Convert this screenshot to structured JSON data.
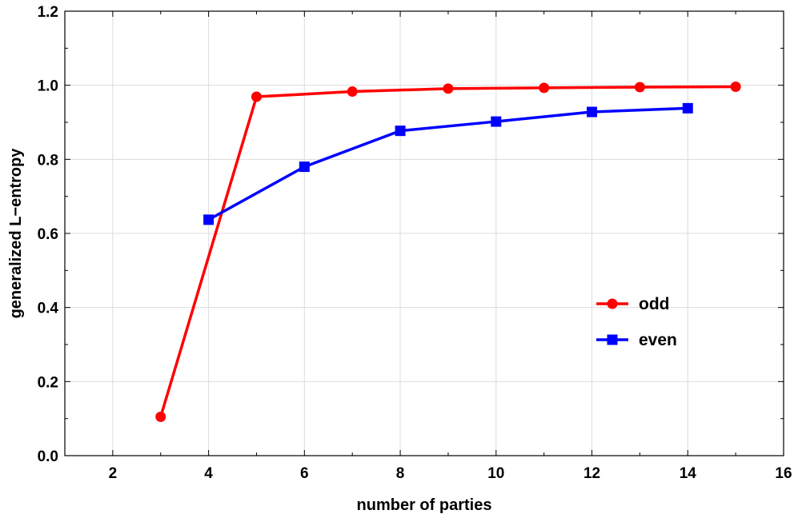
{
  "chart_data": {
    "type": "line",
    "xlabel": "number of parties",
    "ylabel": "generalized L−entropy",
    "xlim": [
      1,
      16
    ],
    "ylim": [
      0,
      1.2
    ],
    "xticks": [
      2,
      4,
      6,
      8,
      10,
      12,
      14,
      16
    ],
    "yticks": [
      0.0,
      0.2,
      0.4,
      0.6,
      0.8,
      1.0,
      1.2
    ],
    "xtick_labels": [
      "2",
      "4",
      "6",
      "8",
      "10",
      "12",
      "14",
      "16"
    ],
    "ytick_labels": [
      "0.0",
      "0.2",
      "0.4",
      "0.6",
      "0.8",
      "1.0",
      "1.2"
    ],
    "grid": true,
    "legend_position": "right",
    "series": [
      {
        "name": "odd",
        "color": "#ff0000",
        "marker": "circle",
        "x": [
          3,
          5,
          7,
          9,
          11,
          13,
          15
        ],
        "y": [
          0.105,
          0.969,
          0.983,
          0.991,
          0.993,
          0.995,
          0.996
        ]
      },
      {
        "name": "even",
        "color": "#0000ff",
        "marker": "square",
        "x": [
          4,
          6,
          8,
          10,
          12,
          14
        ],
        "y": [
          0.637,
          0.78,
          0.877,
          0.902,
          0.928,
          0.938
        ]
      }
    ]
  }
}
